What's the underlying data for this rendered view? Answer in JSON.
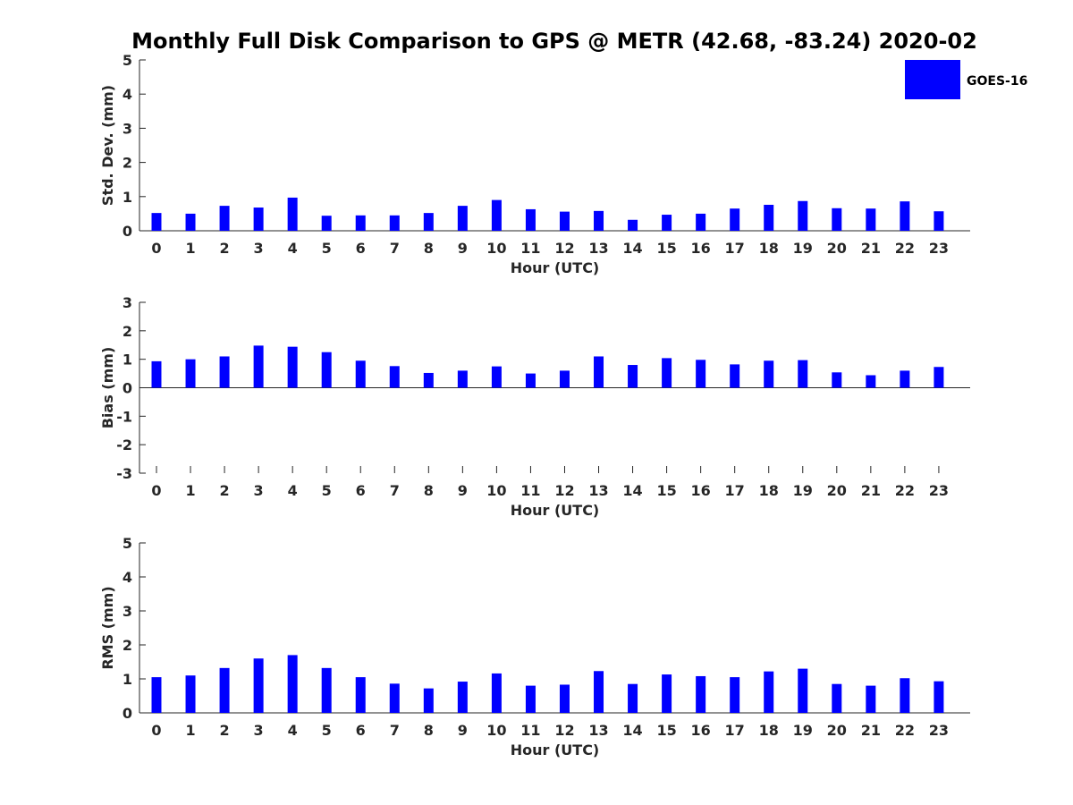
{
  "title": "Monthly Full Disk Comparison to GPS @ METR (42.68, -83.24) 2020-02",
  "legend": {
    "label": "GOES-16",
    "color": "#0000ff",
    "placement": "top-right"
  },
  "chart_data": [
    {
      "type": "bar",
      "xlabel": "Hour (UTC)",
      "ylabel": "Std. Dev. (mm)",
      "ylim": [
        0,
        5
      ],
      "yticks": [
        "0",
        "1",
        "2",
        "3",
        "4",
        "5"
      ],
      "categories": [
        "0",
        "1",
        "2",
        "3",
        "4",
        "5",
        "6",
        "7",
        "8",
        "9",
        "10",
        "11",
        "12",
        "13",
        "14",
        "15",
        "16",
        "17",
        "18",
        "19",
        "20",
        "21",
        "22",
        "23"
      ],
      "series": [
        {
          "name": "GOES-16",
          "color": "#0000ff",
          "values": [
            0.52,
            0.5,
            0.73,
            0.68,
            0.97,
            0.44,
            0.45,
            0.45,
            0.52,
            0.73,
            0.9,
            0.63,
            0.56,
            0.58,
            0.32,
            0.47,
            0.5,
            0.65,
            0.76,
            0.87,
            0.66,
            0.65,
            0.86,
            0.57
          ]
        }
      ]
    },
    {
      "type": "bar",
      "xlabel": "Hour (UTC)",
      "ylabel": "Bias (mm)",
      "ylim": [
        -3,
        3
      ],
      "yticks": [
        "-3",
        "-2",
        "-1",
        "0",
        "1",
        "2",
        "3"
      ],
      "categories": [
        "0",
        "1",
        "2",
        "3",
        "4",
        "5",
        "6",
        "7",
        "8",
        "9",
        "10",
        "11",
        "12",
        "13",
        "14",
        "15",
        "16",
        "17",
        "18",
        "19",
        "20",
        "21",
        "22",
        "23"
      ],
      "series": [
        {
          "name": "GOES-16",
          "color": "#0000ff",
          "values": [
            0.93,
            1.0,
            1.1,
            1.48,
            1.44,
            1.25,
            0.95,
            0.76,
            0.52,
            0.6,
            0.75,
            0.5,
            0.6,
            1.1,
            0.8,
            1.04,
            0.98,
            0.82,
            0.95,
            0.97,
            0.54,
            0.44,
            0.6,
            0.73
          ]
        }
      ]
    },
    {
      "type": "bar",
      "xlabel": "Hour (UTC)",
      "ylabel": "RMS (mm)",
      "ylim": [
        0,
        5
      ],
      "yticks": [
        "0",
        "1",
        "2",
        "3",
        "4",
        "5"
      ],
      "categories": [
        "0",
        "1",
        "2",
        "3",
        "4",
        "5",
        "6",
        "7",
        "8",
        "9",
        "10",
        "11",
        "12",
        "13",
        "14",
        "15",
        "16",
        "17",
        "18",
        "19",
        "20",
        "21",
        "22",
        "23"
      ],
      "series": [
        {
          "name": "GOES-16",
          "color": "#0000ff",
          "values": [
            1.05,
            1.1,
            1.32,
            1.6,
            1.7,
            1.32,
            1.05,
            0.86,
            0.72,
            0.92,
            1.16,
            0.8,
            0.83,
            1.23,
            0.85,
            1.13,
            1.08,
            1.05,
            1.22,
            1.3,
            0.85,
            0.8,
            1.02,
            0.93
          ]
        }
      ]
    }
  ]
}
